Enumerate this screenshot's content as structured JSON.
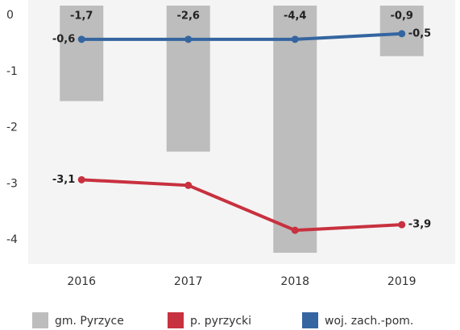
{
  "chart_data": {
    "type": "bar-line",
    "categories": [
      "2016",
      "2017",
      "2018",
      "2019"
    ],
    "series": [
      {
        "name": "gm. Pyrzyce",
        "color": "#bdbdbd",
        "kind": "bar",
        "values": [
          -1.7,
          -2.6,
          -4.4,
          -0.9
        ],
        "value_labels": [
          "-1,7",
          "-2,6",
          "-4,4",
          "-0,9"
        ]
      },
      {
        "name": "p. pyrzycki",
        "color": "#c8313f",
        "kind": "line",
        "values": [
          -3.1,
          -3.2,
          -4.0,
          -3.9
        ],
        "value_labels": [
          "-3,1",
          null,
          null,
          "-3,9"
        ]
      },
      {
        "name": "woj. zach.-pom.",
        "color": "#3565a0",
        "kind": "line",
        "values": [
          -0.6,
          -0.6,
          -0.6,
          -0.5
        ],
        "value_labels": [
          "-0,6",
          null,
          null,
          "-0,5"
        ]
      }
    ],
    "ylim": [
      -4.6,
      0.1
    ],
    "yticks": [
      0,
      -1,
      -2,
      -3,
      -4
    ],
    "legend": "bottom"
  }
}
